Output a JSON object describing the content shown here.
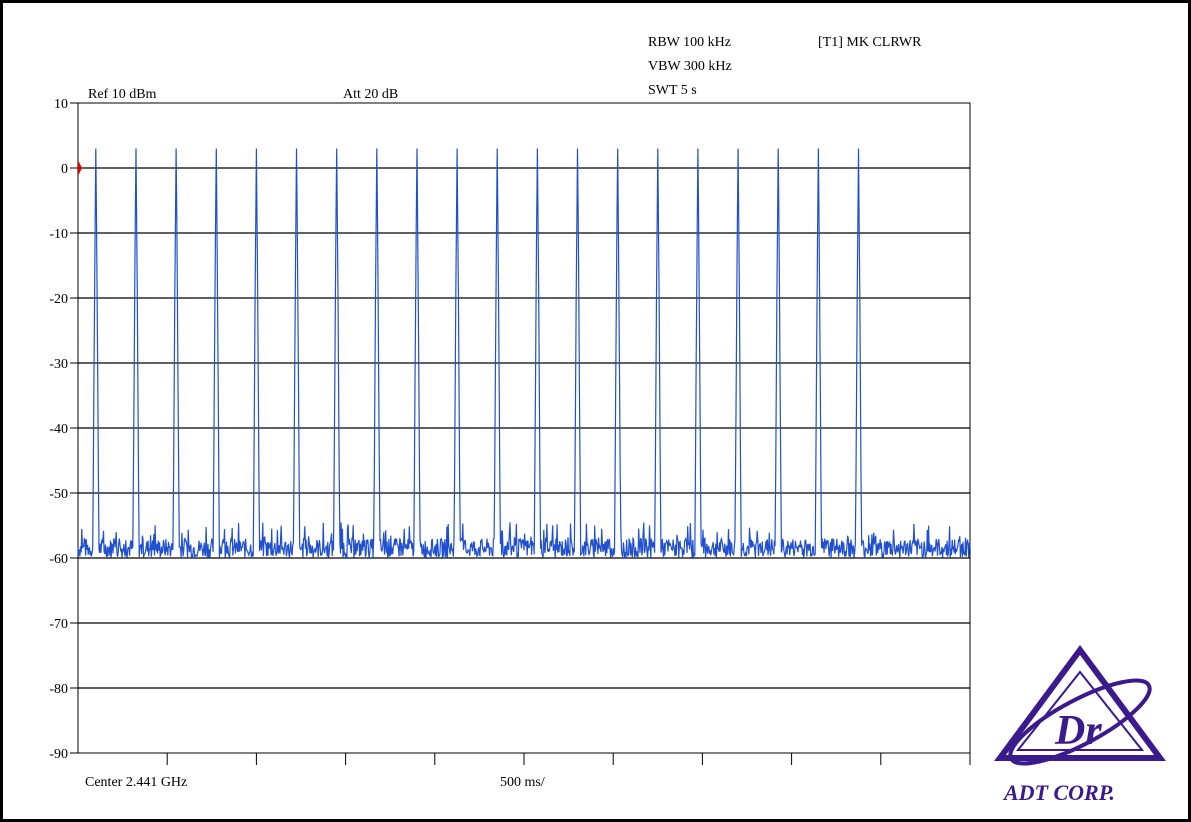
{
  "header": {
    "rbw": "RBW 100 kHz",
    "vbw": "VBW 300 kHz",
    "swt": "SWT 5 s",
    "marker": "[T1] MK CLRWR",
    "ref": "Ref 10 dBm",
    "att": "Att  20 dB"
  },
  "footer": {
    "center": "Center 2.441 GHz",
    "span_per_div": "500 ms/"
  },
  "logo": {
    "text": "ADT CORP.",
    "mark": "Dr",
    "color": "#3a1a8c"
  },
  "colors": {
    "trace": "#2050d0",
    "grid": "#000000",
    "ref_marker": "#e00000"
  },
  "chart_data": {
    "type": "line",
    "ylim": [
      -90,
      10
    ],
    "y_ticks": [
      10,
      0,
      -10,
      -20,
      -30,
      -40,
      -50,
      -60,
      -70,
      -80,
      -90
    ],
    "y_tick_labels": [
      "10",
      "0",
      "-10",
      "-20",
      "-30",
      "-40",
      "-50",
      "-60",
      "-70",
      "-80",
      "-90"
    ],
    "xlim": [
      0,
      5
    ],
    "x_divisions": 10,
    "grid": "horizontal",
    "noise_floor": -58.5,
    "pulse_peak_times_s": [
      0.1,
      0.325,
      0.55,
      0.775,
      1.0,
      1.225,
      1.45,
      1.675,
      1.9,
      2.125,
      2.35,
      2.575,
      2.8,
      3.025,
      3.25,
      3.475,
      3.7,
      3.925,
      4.15,
      4.375
    ],
    "pulse_peak_levels_dbm": [
      3,
      3,
      3,
      3,
      3,
      3,
      3,
      3,
      3,
      3,
      3,
      3,
      3,
      3,
      3,
      3,
      3,
      3,
      3,
      3
    ]
  }
}
